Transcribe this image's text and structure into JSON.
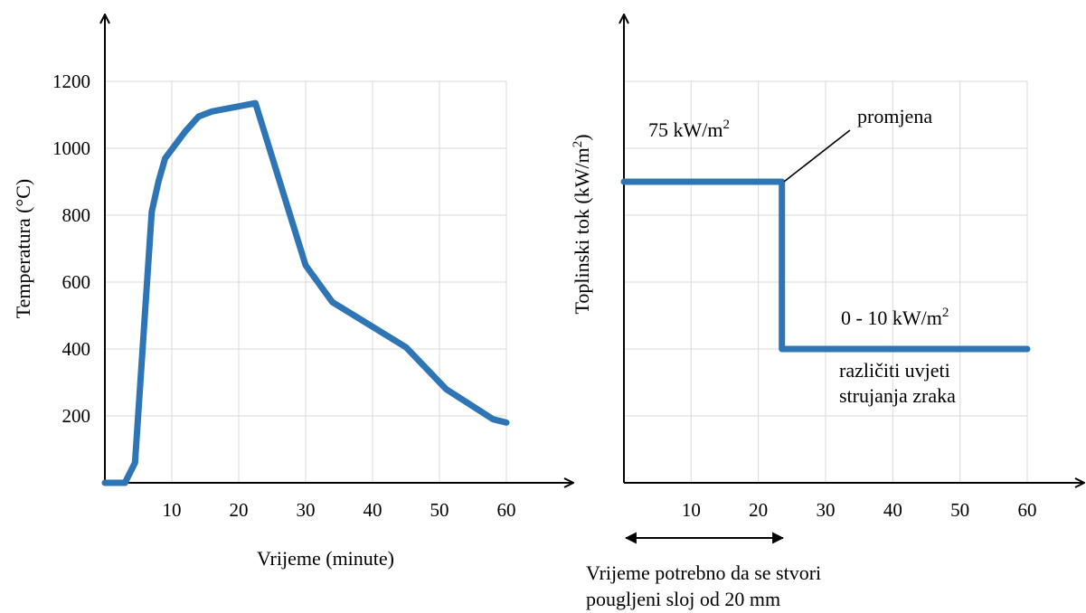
{
  "colors": {
    "series": "#2e75b6",
    "grid": "#d9d9d9",
    "axis": "#000000"
  },
  "chart_data": [
    {
      "type": "line",
      "title": "",
      "xlabel": "Vrijeme (minute)",
      "ylabel": "Temperatura (°C)",
      "xlim": [
        0,
        60
      ],
      "ylim": [
        0,
        1200
      ],
      "xticks": [
        10,
        20,
        30,
        40,
        50,
        60
      ],
      "yticks": [
        200,
        400,
        600,
        800,
        1000,
        1200
      ],
      "grid": true,
      "series": [
        {
          "x": [
            0,
            3,
            4.5,
            7,
            8,
            9,
            12,
            14,
            16,
            22.5,
            30,
            34,
            45,
            51,
            58,
            60
          ],
          "y": [
            0,
            0,
            60,
            810,
            900,
            970,
            1050,
            1095,
            1110,
            1135,
            650,
            540,
            405,
            280,
            190,
            180
          ]
        }
      ]
    },
    {
      "type": "line",
      "title": "",
      "xlabel": "",
      "ylabel": "Toplinski tok (kW/m2)",
      "xlim": [
        0,
        60
      ],
      "ylim": [
        0,
        1200
      ],
      "xticks": [
        10,
        20,
        30,
        40,
        50,
        60
      ],
      "grid": true,
      "series": [
        {
          "x": [
            0,
            23.5,
            23.5,
            60
          ],
          "y": [
            900,
            900,
            400,
            400
          ]
        }
      ],
      "annotations": {
        "high_value": "75 kW/m",
        "change": "promjena",
        "low_value": "0 - 10 kW/m",
        "superscript": "2",
        "conditions_line1": "različiti uvjeti",
        "conditions_line2": "strujanja zraka",
        "time_needed_line1": "Vrijeme potrebno da se stvori",
        "time_needed_line2": "pougljeni sloj od 20 mm"
      }
    }
  ]
}
